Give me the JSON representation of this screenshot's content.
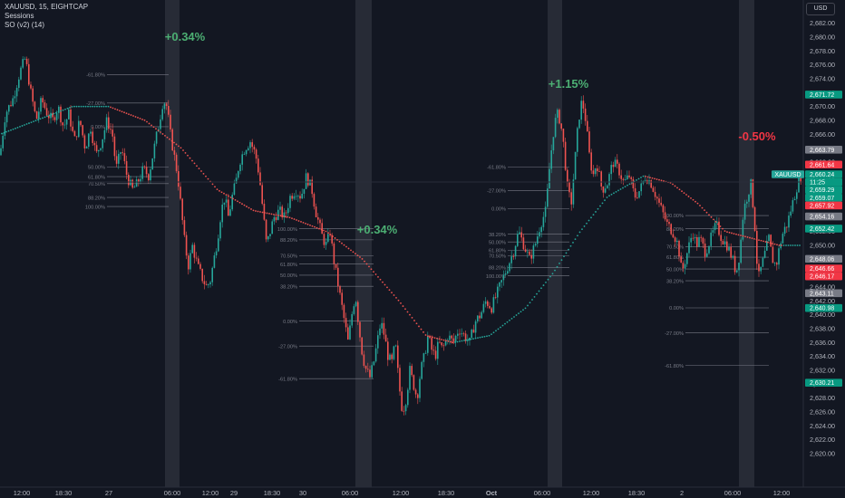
{
  "legend": {
    "symbol_line": "XAUUSD, 15, EIGHTCAP",
    "sessions_label": "Sessions",
    "indicator_label": "SO (v2) (14)"
  },
  "currency_button": "USD",
  "colors": {
    "background": "#131722",
    "up": "#26a69a",
    "down": "#ef5350",
    "up_text": "#4caf73",
    "down_text": "#f23645",
    "session": "#2a2e39",
    "fib": "#787b86",
    "ma_up": "#26a69a",
    "ma_down": "#ef5350"
  },
  "chart_data": {
    "type": "candlestick",
    "symbol": "XAUUSD",
    "interval": "15",
    "broker": "EIGHTCAP",
    "ylim": [
      2620,
      2683
    ],
    "y_ticks": [
      "2,620.00",
      "2,622.00",
      "2,624.00",
      "2,626.00",
      "2,628.00",
      "2,630.00",
      "2,632.00",
      "2,634.00",
      "2,636.00",
      "2,638.00",
      "2,640.00",
      "2,642.00",
      "2,644.00",
      "2,646.00",
      "2,648.00",
      "2,650.00",
      "2,652.00",
      "2,654.00",
      "2,656.00",
      "2,658.00",
      "2,660.00",
      "2,662.00",
      "2,664.00",
      "2,666.00",
      "2,668.00",
      "2,670.00",
      "2,672.00",
      "2,674.00",
      "2,676.00",
      "2,678.00",
      "2,680.00",
      "2,682.00"
    ],
    "x_ticks": [
      "12:00",
      "18:30",
      "27",
      "06:00",
      "12:00",
      "18:30",
      "29",
      "30",
      "06:00",
      "12:00",
      "18:30",
      "Oct",
      "06:00",
      "12:00",
      "18:30",
      "2",
      "06:00",
      "12:00"
    ],
    "path": [
      [
        0,
        2663
      ],
      [
        6,
        2669
      ],
      [
        14,
        2671
      ],
      [
        22,
        2675
      ],
      [
        28,
        2677
      ],
      [
        34,
        2672
      ],
      [
        40,
        2668
      ],
      [
        46,
        2671
      ],
      [
        52,
        2669
      ],
      [
        58,
        2668
      ],
      [
        64,
        2670
      ],
      [
        70,
        2667
      ],
      [
        76,
        2669
      ],
      [
        82,
        2665
      ],
      [
        88,
        2668
      ],
      [
        94,
        2664
      ],
      [
        100,
        2667
      ],
      [
        106,
        2663
      ],
      [
        112,
        2665
      ],
      [
        118,
        2668
      ],
      [
        124,
        2666
      ],
      [
        128,
        2661
      ],
      [
        134,
        2664
      ],
      [
        140,
        2660
      ],
      [
        146,
        2658
      ],
      [
        152,
        2659
      ],
      [
        158,
        2661
      ],
      [
        164,
        2660
      ],
      [
        170,
        2664
      ],
      [
        176,
        2668
      ],
      [
        180,
        2671
      ],
      [
        184,
        2670
      ],
      [
        188,
        2666
      ],
      [
        192,
        2663
      ],
      [
        196,
        2660
      ],
      [
        200,
        2655
      ],
      [
        204,
        2650
      ],
      [
        208,
        2647
      ],
      [
        212,
        2650
      ],
      [
        218,
        2647
      ],
      [
        224,
        2645
      ],
      [
        228,
        2644
      ],
      [
        232,
        2645
      ],
      [
        236,
        2648
      ],
      [
        240,
        2651
      ],
      [
        244,
        2655
      ],
      [
        248,
        2657
      ],
      [
        252,
        2654
      ],
      [
        256,
        2657
      ],
      [
        260,
        2659
      ],
      [
        264,
        2662
      ],
      [
        270,
        2664
      ],
      [
        276,
        2665
      ],
      [
        282,
        2663
      ],
      [
        286,
        2660
      ],
      [
        290,
        2655
      ],
      [
        294,
        2650
      ],
      [
        298,
        2652
      ],
      [
        302,
        2654
      ],
      [
        308,
        2655
      ],
      [
        314,
        2654
      ],
      [
        320,
        2657
      ],
      [
        326,
        2658
      ],
      [
        332,
        2657
      ],
      [
        338,
        2660
      ],
      [
        344,
        2658
      ],
      [
        348,
        2655
      ],
      [
        352,
        2653
      ],
      [
        356,
        2651
      ],
      [
        360,
        2650
      ],
      [
        364,
        2652
      ],
      [
        368,
        2648
      ],
      [
        372,
        2645
      ],
      [
        376,
        2642
      ],
      [
        380,
        2639
      ],
      [
        384,
        2636
      ],
      [
        388,
        2640
      ],
      [
        392,
        2643
      ],
      [
        396,
        2638
      ],
      [
        400,
        2634
      ],
      [
        404,
        2632
      ],
      [
        408,
        2631
      ],
      [
        412,
        2633
      ],
      [
        416,
        2636
      ],
      [
        420,
        2639
      ],
      [
        424,
        2637
      ],
      [
        428,
        2634
      ],
      [
        432,
        2633
      ],
      [
        436,
        2636
      ],
      [
        440,
        2630
      ],
      [
        444,
        2626
      ],
      [
        448,
        2628
      ],
      [
        452,
        2632
      ],
      [
        456,
        2630
      ],
      [
        460,
        2628
      ],
      [
        464,
        2632
      ],
      [
        468,
        2634
      ],
      [
        472,
        2637
      ],
      [
        476,
        2635
      ],
      [
        480,
        2634
      ],
      [
        484,
        2636
      ],
      [
        488,
        2635
      ],
      [
        494,
        2637
      ],
      [
        500,
        2636
      ],
      [
        506,
        2638
      ],
      [
        512,
        2637
      ],
      [
        518,
        2636
      ],
      [
        524,
        2639
      ],
      [
        530,
        2640
      ],
      [
        536,
        2642
      ],
      [
        542,
        2641
      ],
      [
        548,
        2643
      ],
      [
        554,
        2645
      ],
      [
        560,
        2647
      ],
      [
        566,
        2649
      ],
      [
        572,
        2652
      ],
      [
        578,
        2650
      ],
      [
        584,
        2648
      ],
      [
        590,
        2650
      ],
      [
        596,
        2653
      ],
      [
        602,
        2655
      ],
      [
        606,
        2661
      ],
      [
        610,
        2666
      ],
      [
        614,
        2669
      ],
      [
        618,
        2668
      ],
      [
        622,
        2664
      ],
      [
        626,
        2658
      ],
      [
        630,
        2656
      ],
      [
        634,
        2662
      ],
      [
        638,
        2668
      ],
      [
        642,
        2671
      ],
      [
        646,
        2668
      ],
      [
        650,
        2663
      ],
      [
        654,
        2660
      ],
      [
        658,
        2662
      ],
      [
        664,
        2658
      ],
      [
        670,
        2659
      ],
      [
        676,
        2662
      ],
      [
        682,
        2661
      ],
      [
        688,
        2659
      ],
      [
        694,
        2660
      ],
      [
        700,
        2657
      ],
      [
        706,
        2658
      ],
      [
        712,
        2660
      ],
      [
        718,
        2659
      ],
      [
        724,
        2657
      ],
      [
        730,
        2655
      ],
      [
        736,
        2653
      ],
      [
        742,
        2652
      ],
      [
        748,
        2650
      ],
      [
        752,
        2646
      ],
      [
        756,
        2648
      ],
      [
        760,
        2650
      ],
      [
        764,
        2652
      ],
      [
        768,
        2650
      ],
      [
        772,
        2651
      ],
      [
        778,
        2649
      ],
      [
        784,
        2651
      ],
      [
        790,
        2653
      ],
      [
        796,
        2651
      ],
      [
        802,
        2650
      ],
      [
        808,
        2648
      ],
      [
        812,
        2646
      ],
      [
        816,
        2649
      ],
      [
        820,
        2655
      ],
      [
        824,
        2657
      ],
      [
        828,
        2659
      ],
      [
        832,
        2654
      ],
      [
        836,
        2645
      ],
      [
        840,
        2647
      ],
      [
        844,
        2649
      ],
      [
        848,
        2651
      ],
      [
        852,
        2648
      ],
      [
        856,
        2647
      ],
      [
        860,
        2650
      ],
      [
        864,
        2652
      ],
      [
        868,
        2653
      ],
      [
        872,
        2655
      ],
      [
        876,
        2657
      ],
      [
        880,
        2659
      ],
      [
        884,
        2660
      ]
    ],
    "moving_average_points": [
      [
        0,
        2666
      ],
      [
        40,
        2668
      ],
      [
        80,
        2670
      ],
      [
        120,
        2670
      ],
      [
        160,
        2668
      ],
      [
        200,
        2664
      ],
      [
        240,
        2658
      ],
      [
        280,
        2655
      ],
      [
        320,
        2654
      ],
      [
        360,
        2652
      ],
      [
        400,
        2648
      ],
      [
        440,
        2642
      ],
      [
        470,
        2637
      ],
      [
        500,
        2636
      ],
      [
        540,
        2637
      ],
      [
        580,
        2641
      ],
      [
        610,
        2646
      ],
      [
        640,
        2652
      ],
      [
        670,
        2657
      ],
      [
        710,
        2660
      ],
      [
        740,
        2659
      ],
      [
        770,
        2656
      ],
      [
        800,
        2652
      ],
      [
        830,
        2651
      ],
      [
        860,
        2650
      ],
      [
        884,
        2650
      ]
    ],
    "session_ranges": [
      [
        182,
        198
      ],
      [
        392,
        410
      ],
      [
        604,
        620
      ],
      [
        815,
        832
      ]
    ],
    "session_changes": [
      {
        "x": 204,
        "label": "+0.34%",
        "direction": "up"
      },
      {
        "x": 416,
        "label": "+0.34%",
        "direction": "up"
      },
      {
        "x": 627,
        "label": "+1.15%",
        "direction": "up"
      },
      {
        "x": 835,
        "label": "-0.50%",
        "direction": "down"
      }
    ],
    "fib_sets": [
      {
        "x1": 118,
        "x2": 186,
        "labels": [
          [
            "-61.80%",
            2674.6
          ],
          [
            "-27.00%",
            2670.5
          ],
          [
            "0.00%",
            2667.1
          ],
          [
            "50.00%",
            2661.3
          ],
          [
            "61.80%",
            2659.9
          ],
          [
            "70.50%",
            2658.9
          ],
          [
            "88.20%",
            2656.9
          ],
          [
            "100.00%",
            2655.6
          ]
        ]
      },
      {
        "x1": 330,
        "x2": 412,
        "labels": [
          [
            "100.00%",
            2652.4
          ],
          [
            "88.20%",
            2650.8
          ],
          [
            "70.50%",
            2648.5
          ],
          [
            "61.80%",
            2647.3
          ],
          [
            "50.00%",
            2645.7
          ],
          [
            "38.20%",
            2644.1
          ],
          [
            "0.00%",
            2639.1
          ],
          [
            "-27.00%",
            2635.5
          ],
          [
            "-61.80%",
            2630.8
          ]
        ]
      },
      {
        "x1": 560,
        "x2": 628,
        "labels": [
          [
            "-61.80%",
            2661.3
          ],
          [
            "-27.00%",
            2657.9
          ],
          [
            "0.00%",
            2655.3
          ],
          [
            "38.20%",
            2651.6
          ],
          [
            "50.00%",
            2650.5
          ],
          [
            "61.80%",
            2649.3
          ],
          [
            "70.50%",
            2648.5
          ],
          [
            "88.20%",
            2646.8
          ],
          [
            "100.00%",
            2645.6
          ]
        ]
      },
      {
        "x1": 756,
        "x2": 848,
        "labels": [
          [
            "100.00%",
            2654.3
          ],
          [
            "88.20%",
            2652.4
          ],
          [
            "70.50%",
            2649.8
          ],
          [
            "61.80%",
            2648.3
          ],
          [
            "50.00%",
            2646.6
          ],
          [
            "38.20%",
            2644.9
          ],
          [
            "0.00%",
            2641.0
          ],
          [
            "-27.00%",
            2637.4
          ],
          [
            "-61.80%",
            2632.7
          ]
        ]
      }
    ],
    "price_labels": [
      {
        "value": 2671.72,
        "text": "2,671.72",
        "color": "#089981"
      },
      {
        "value": 2663.79,
        "text": "2,663.79",
        "color": "#787b86"
      },
      {
        "value": 2661.64,
        "text": "2,661.64",
        "color": "#f23645"
      },
      {
        "value": 2660.24,
        "text": "2,660.24",
        "color": "#089981",
        "extra": "11:25"
      },
      {
        "value": 2659.29,
        "text": "2,659.29",
        "color": "#089981"
      },
      {
        "value": 2659.07,
        "text": "2,659.07",
        "color": "#089981"
      },
      {
        "value": 2657.92,
        "text": "2,657.92",
        "color": "#f23645"
      },
      {
        "value": 2654.16,
        "text": "2,654.16",
        "color": "#787b86"
      },
      {
        "value": 2652.42,
        "text": "2,652.42",
        "color": "#089981"
      },
      {
        "value": 2648.06,
        "text": "2,648.06",
        "color": "#787b86"
      },
      {
        "value": 2646.66,
        "text": "2,646.66",
        "color": "#f23645"
      },
      {
        "value": 2646.17,
        "text": "2,646.17",
        "color": "#f23645"
      },
      {
        "value": 2643.11,
        "text": "2,643.11",
        "color": "#787b86"
      },
      {
        "value": 2640.98,
        "text": "2,640.98",
        "color": "#089981"
      },
      {
        "value": 2630.21,
        "text": "2,630.21",
        "color": "#089981"
      }
    ],
    "symbol_tag": "XAUUSD",
    "current_price": 2660.24,
    "grid": false
  }
}
